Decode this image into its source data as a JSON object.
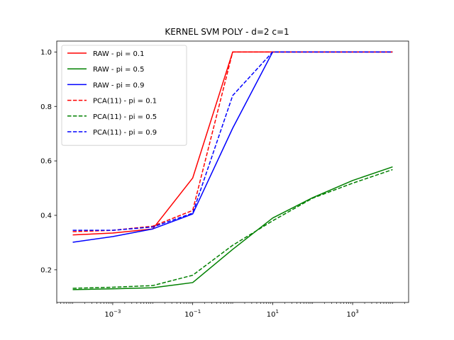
{
  "chart_data": {
    "type": "line",
    "title": "KERNEL SVM POLY - d=2 c=1",
    "xlabel": "",
    "ylabel": "",
    "xscale": "log",
    "xlim": [
      0.0001,
      10000
    ],
    "ylim": [
      0.08,
      1.04
    ],
    "x_ticks": [
      {
        "value": 0.001,
        "base": "10",
        "exp": "−3"
      },
      {
        "value": 0.1,
        "base": "10",
        "exp": "−1"
      },
      {
        "value": 10,
        "base": "10",
        "exp": "1"
      },
      {
        "value": 1000,
        "base": "10",
        "exp": "3"
      }
    ],
    "y_ticks": [
      {
        "value": 0.2,
        "label": "0.2"
      },
      {
        "value": 0.4,
        "label": "0.4"
      },
      {
        "value": 0.6,
        "label": "0.6"
      },
      {
        "value": 0.8,
        "label": "0.8"
      },
      {
        "value": 1.0,
        "label": "1.0"
      }
    ],
    "x": [
      0.0001,
      0.001,
      0.01,
      0.1,
      1,
      10,
      100,
      1000,
      10000
    ],
    "legend_position": "upper-left",
    "grid": false,
    "series": [
      {
        "name": "RAW - pi = 0.1",
        "color": "#ff0000",
        "dash": "solid",
        "values": [
          0.328,
          0.335,
          0.35,
          0.537,
          1.0,
          1.0,
          1.0,
          1.0,
          1.0
        ]
      },
      {
        "name": "RAW - pi = 0.5",
        "color": "#008000",
        "dash": "solid",
        "values": [
          0.127,
          0.13,
          0.134,
          0.153,
          0.275,
          0.39,
          0.465,
          0.528,
          0.578
        ]
      },
      {
        "name": "RAW - pi = 0.9",
        "color": "#0000ff",
        "dash": "solid",
        "values": [
          0.301,
          0.322,
          0.35,
          0.405,
          0.72,
          1.0,
          1.0,
          1.0,
          1.0
        ]
      },
      {
        "name": "PCA(11) - pi = 0.1",
        "color": "#ff0000",
        "dash": "dashed",
        "values": [
          0.34,
          0.345,
          0.36,
          0.418,
          1.0,
          1.0,
          1.0,
          1.0,
          1.0
        ]
      },
      {
        "name": "PCA(11) - pi = 0.5",
        "color": "#008000",
        "dash": "dashed",
        "values": [
          0.132,
          0.136,
          0.142,
          0.18,
          0.29,
          0.38,
          0.463,
          0.518,
          0.568
        ]
      },
      {
        "name": "PCA(11) - pi = 0.9",
        "color": "#0000ff",
        "dash": "dashed",
        "values": [
          0.345,
          0.345,
          0.357,
          0.408,
          0.84,
          1.0,
          1.0,
          1.0,
          1.0
        ]
      }
    ]
  }
}
